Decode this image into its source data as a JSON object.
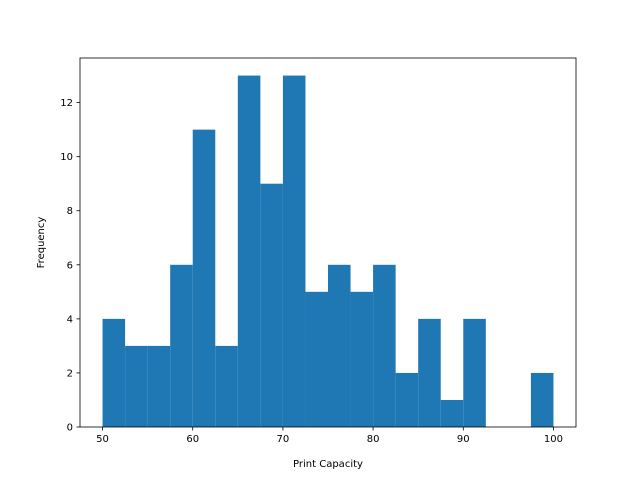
{
  "chart_data": {
    "type": "bar",
    "subtype": "histogram",
    "title": "",
    "xlabel": "Print Capacity",
    "ylabel": "Frequency",
    "bin_start": 50,
    "bin_width": 2.5,
    "values": [
      4,
      3,
      3,
      6,
      11,
      3,
      13,
      9,
      13,
      5,
      6,
      5,
      6,
      2,
      4,
      1,
      4,
      0,
      0,
      2
    ],
    "xlim": [
      47.5,
      102.5
    ],
    "ylim": [
      0,
      13.65
    ],
    "xticks": [
      50,
      60,
      70,
      80,
      90,
      100
    ],
    "yticks": [
      0,
      2,
      4,
      6,
      8,
      10,
      12
    ],
    "bar_color": "#1f77b4",
    "grid": false
  }
}
